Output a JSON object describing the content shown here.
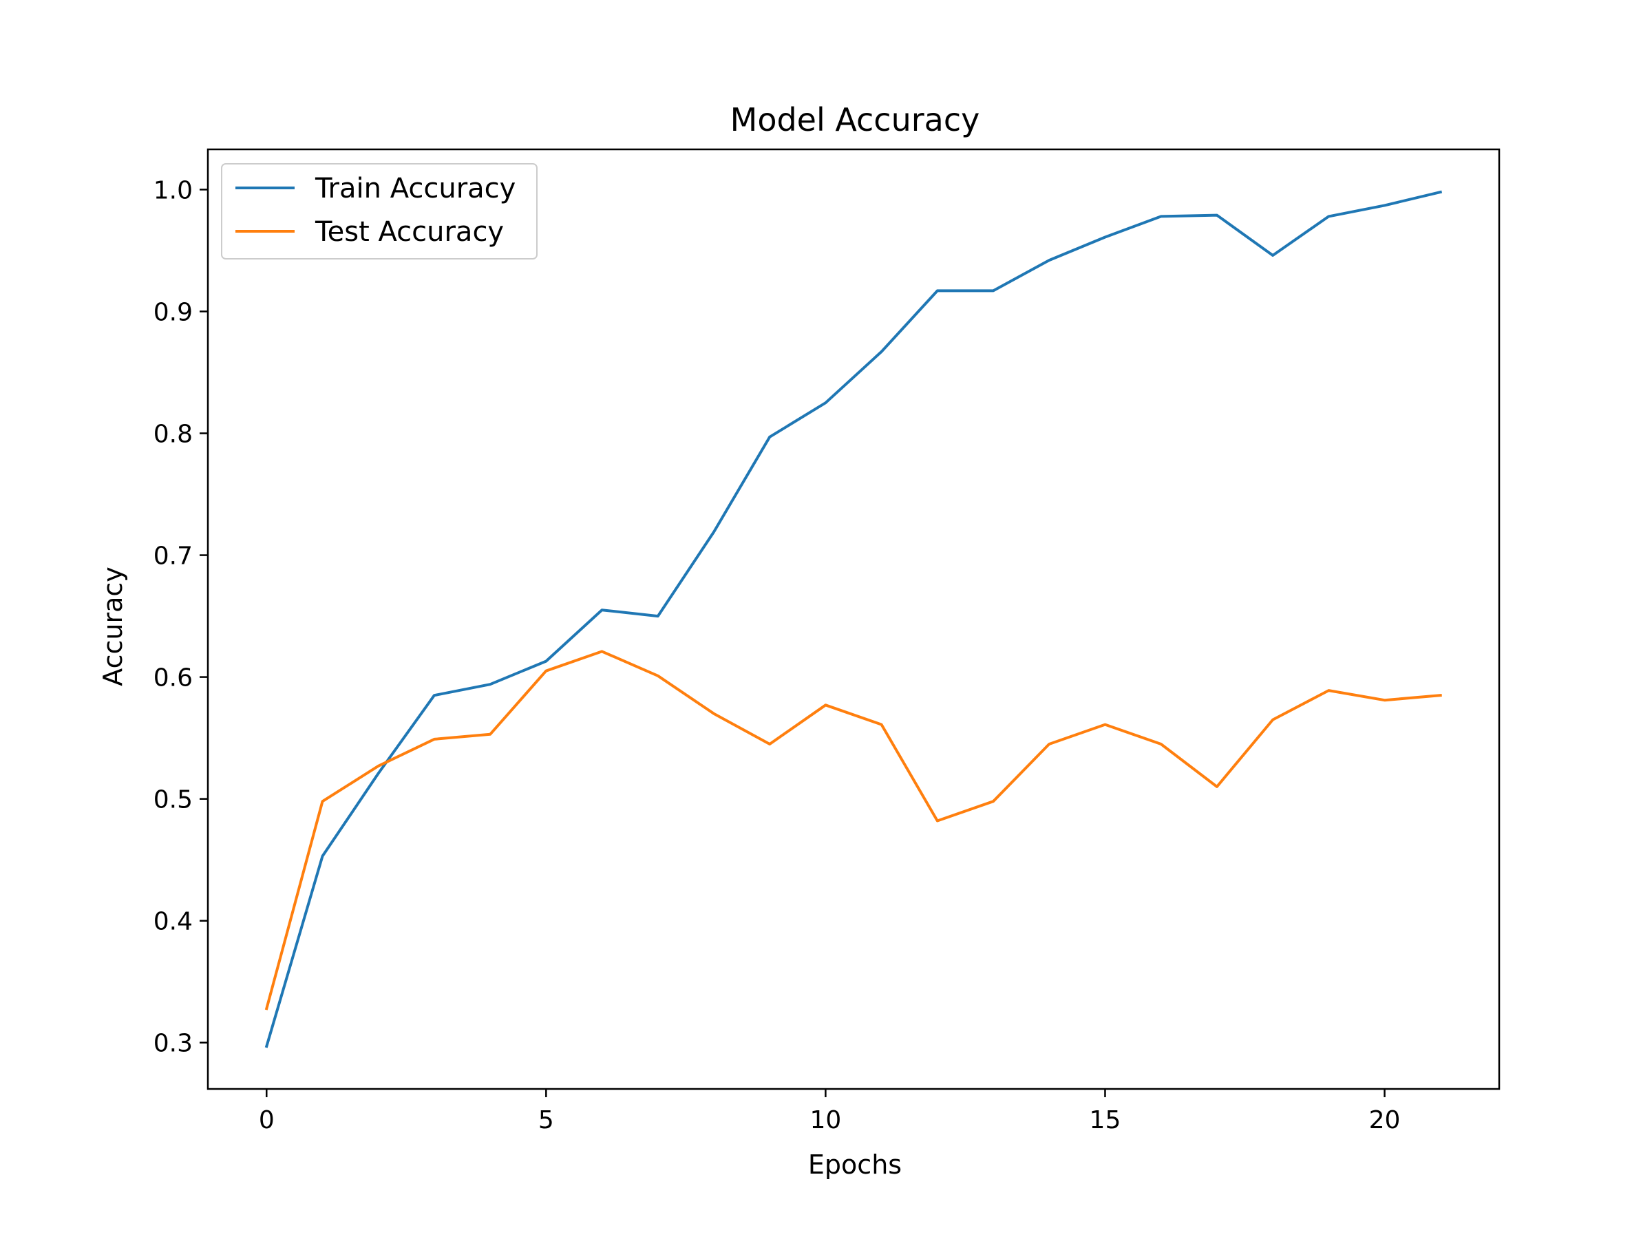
{
  "chart_data": {
    "type": "line",
    "title": "Model Accuracy",
    "xlabel": "Epochs",
    "ylabel": "Accuracy",
    "x": [
      0,
      1,
      2,
      3,
      4,
      5,
      6,
      7,
      8,
      9,
      10,
      11,
      12,
      13,
      14,
      15,
      16,
      17,
      18,
      19,
      20,
      21
    ],
    "series": [
      {
        "name": "Train Accuracy",
        "color": "#1f77b4",
        "values": [
          0.297,
          0.453,
          0.521,
          0.585,
          0.594,
          0.613,
          0.655,
          0.65,
          0.719,
          0.797,
          0.825,
          0.867,
          0.917,
          0.917,
          0.942,
          0.961,
          0.978,
          0.979,
          0.946,
          0.978,
          0.987,
          0.998
        ]
      },
      {
        "name": "Test Accuracy",
        "color": "#ff7f0e",
        "values": [
          0.328,
          0.498,
          0.527,
          0.549,
          0.553,
          0.605,
          0.621,
          0.601,
          0.57,
          0.545,
          0.577,
          0.561,
          0.482,
          0.498,
          0.545,
          0.561,
          0.545,
          0.51,
          0.565,
          0.589,
          0.581,
          0.585
        ]
      }
    ],
    "xlim": [
      -1.05,
      22.05
    ],
    "ylim": [
      0.262,
      1.033
    ],
    "xticks": [
      0,
      5,
      10,
      15,
      20
    ],
    "xtick_labels": [
      "0",
      "5",
      "10",
      "15",
      "20"
    ],
    "yticks": [
      0.3,
      0.4,
      0.5,
      0.6,
      0.7,
      0.8,
      0.9,
      1.0
    ],
    "ytick_labels": [
      "0.3",
      "0.4",
      "0.5",
      "0.6",
      "0.7",
      "0.8",
      "0.9",
      "1.0"
    ],
    "legend_position": "upper left",
    "grid": false
  }
}
